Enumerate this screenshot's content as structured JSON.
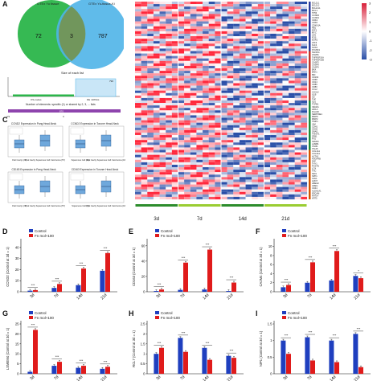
{
  "panel_letters": {
    "a": "A",
    "c": "C",
    "d": "D",
    "e": "E",
    "f": "F",
    "g": "G",
    "h": "H",
    "i": "I"
  },
  "venn": {
    "set1_label": "GTEx Yu tissue",
    "set2_label": "GTEx Yu-tissue-Ki",
    "left_only": "72",
    "overlap": "3",
    "right_only": "787",
    "set1_color": "#2bb54a",
    "set2_color": "#4fb4e8"
  },
  "size_chart": {
    "title": "Size of each list",
    "bar_value_label": "790",
    "x_labels": [
      "OS-nodes",
      "DE mRNAs"
    ],
    "footer": "Number of elements: specific (1) or shared by 2, 3, ... lists",
    "bottom_value": "870",
    "bottom_ticks": [
      "2/3",
      "3"
    ]
  },
  "boxplots": [
    {
      "title": "CCND2 Expression in Pang Head-Neck",
      "xlabels": [
        "Oral Cavity (20)",
        "Oral Cavity Squamous Cell Carcinoma (57)"
      ]
    },
    {
      "title": "CCND2 Expression in Toruner Head-Neck",
      "xlabels": [
        "Squamous Cell (11)",
        "Oral Cavity Squamous Cell Carcinoma (16)"
      ]
    },
    {
      "title": "CD163 Expression in Pang Head-Neck",
      "xlabels": [
        "Oral Cavity (22)",
        "Oral Cavity Squamous Cell Carcinoma (57)"
      ]
    },
    {
      "title": "CD163 Expression in Toruner Head-Neck",
      "xlabels": [
        "Squamous Cell (4)",
        "Oral Cavity Squamous Cell Carcinoma (16)"
      ]
    }
  ],
  "heatmap": {
    "columns_per_group": 7,
    "timepoints": [
      "3d",
      "7d",
      "14d",
      "21d"
    ],
    "group_colors": [
      "#2c8c2c",
      "#9acd32",
      "#2c8c2c",
      "#9acd32"
    ],
    "scale_ticks": [
      "3",
      "2",
      "1",
      "0",
      "-1",
      "-2",
      "-3"
    ],
    "scale_colors": {
      "high": "#d8203a",
      "mid": "#ffffff",
      "low": "#2a4fa8"
    },
    "row_group_colors": [
      "#2c3e9c",
      "#c0392b",
      "#1f8a3a",
      "#d35400"
    ],
    "gene_labels": [
      "BCL2L1",
      "BCL2L2",
      "BCL2L11",
      "MCL1",
      "TP53",
      "CCND2",
      "CCND1",
      "CDK4",
      "CDK6",
      "CDKN1A",
      "RB1",
      "E2F1",
      "MYC",
      "JUN",
      "FOS",
      "EGR1",
      "ATF3",
      "KLF4",
      "SOX2",
      "POU5F1",
      "NANOG",
      "LIN28A",
      "TNFRSF10A",
      "TNFRSF10B",
      "CASP3",
      "CASP8",
      "CASP9",
      "BAX",
      "BAK1",
      "BID",
      "CD163",
      "CD68",
      "CD14",
      "CD86",
      "CD80",
      "CCL2",
      "CXCL8",
      "IL1B",
      "IL6",
      "TNF",
      "IL10",
      "TGFB1",
      "VEGFA",
      "HIF1A",
      "PLAUR",
      "SERPINE1",
      "MMP9",
      "MMP2",
      "TIMP1",
      "VIM",
      "CDH1",
      "CDH2",
      "SNAI1",
      "TWIST1",
      "ZEB1",
      "FN1",
      "SPARC",
      "LAMB1",
      "ITGB1",
      "ITGA5",
      "COL1A1",
      "COL3A1",
      "ACTA2",
      "PDGFRB",
      "FAP",
      "THY1",
      "POSTN",
      "LOX",
      "TNC",
      "NID1",
      "SPP1",
      "CAV1",
      "LMO7",
      "HBEGF",
      "AREG",
      "CD44",
      "ALDH1A1",
      "EPCAM",
      "KRT14",
      "KRT5"
    ]
  },
  "bar_charts": [
    {
      "letter_key": "d",
      "ylabel": "CCND2 (Control at 3d = 1)",
      "legend": [
        "Control",
        "Fn mol+100"
      ],
      "categories": [
        "3d",
        "7d",
        "14d",
        "21d"
      ],
      "series": [
        {
          "name": "Control",
          "values": [
            1.0,
            3.5,
            6.0,
            19.0
          ]
        },
        {
          "name": "Fn mol+100",
          "values": [
            1.5,
            7.0,
            21.0,
            35.0
          ]
        }
      ],
      "ylim": [
        0,
        45
      ],
      "yticks": [
        0,
        10,
        20,
        30,
        40
      ],
      "sig": [
        "***",
        "***",
        "***",
        "***"
      ]
    },
    {
      "letter_key": "e",
      "ylabel": "CD163 (Control at 3d = 1)",
      "legend": [
        "Control",
        "Fn mol+100"
      ],
      "categories": [
        "3d",
        "7d",
        "14d",
        "21d"
      ],
      "series": [
        {
          "name": "Control",
          "values": [
            1.0,
            2.5,
            3.0,
            1.0
          ]
        },
        {
          "name": "Fn mol+100",
          "values": [
            3.0,
            38.0,
            55.0,
            12.0
          ]
        }
      ],
      "ylim": [
        0,
        65
      ],
      "yticks": [
        0,
        20,
        40,
        60
      ],
      "sig": [
        "***",
        "***",
        "***",
        "***"
      ]
    },
    {
      "letter_key": "f",
      "ylabel": "CA2M4 (Control at 3d = 1)",
      "legend": [
        "Control",
        "Fn mol+100"
      ],
      "categories": [
        "3d",
        "7d",
        "14d",
        "21d"
      ],
      "series": [
        {
          "name": "Control",
          "values": [
            1.0,
            2.0,
            2.5,
            3.5
          ]
        },
        {
          "name": "Fn mol+100",
          "values": [
            1.5,
            6.5,
            9.0,
            3.0
          ]
        }
      ],
      "ylim": [
        0,
        11
      ],
      "yticks": [
        0,
        2,
        4,
        6,
        8,
        10
      ],
      "sig": [
        "***",
        "***",
        "***",
        "*"
      ]
    },
    {
      "letter_key": "g",
      "ylabel": "LSMEM4 (Control at 3d = 1)",
      "legend": [
        "Control",
        "Fn mol+100"
      ],
      "categories": [
        "3d",
        "7d",
        "14d",
        "21d"
      ],
      "series": [
        {
          "name": "Control",
          "values": [
            1.0,
            4.0,
            3.0,
            2.5
          ]
        },
        {
          "name": "Fn mol+100",
          "values": [
            22.0,
            6.0,
            4.0,
            3.5
          ]
        }
      ],
      "ylim": [
        0,
        25
      ],
      "yticks": [
        0,
        5,
        10,
        15,
        20,
        25
      ],
      "sig": [
        "***",
        "***",
        "***",
        "***"
      ]
    },
    {
      "letter_key": "h",
      "ylabel": "RCL7 (Control at 3d = 1)",
      "legend": [
        "Control",
        "Fn mol+100"
      ],
      "categories": [
        "3d",
        "7d",
        "14d",
        "21d"
      ],
      "series": [
        {
          "name": "Control",
          "values": [
            1.0,
            1.8,
            1.3,
            0.9
          ]
        },
        {
          "name": "Fn mol+100",
          "values": [
            1.3,
            1.1,
            0.7,
            0.8
          ]
        }
      ],
      "ylim": [
        0,
        2.5
      ],
      "yticks": [
        0,
        0.5,
        1.0,
        1.5,
        2.0,
        2.5
      ],
      "sig": [
        "***",
        "***",
        "***",
        "***"
      ]
    },
    {
      "letter_key": "i",
      "ylabel": "NIP1 (Control at 3d = 1)",
      "legend": [
        "Control",
        "Fn mol+100"
      ],
      "categories": [
        "3d",
        "7d",
        "14d",
        "21d"
      ],
      "series": [
        {
          "name": "Control",
          "values": [
            1.0,
            1.1,
            1.0,
            1.2
          ]
        },
        {
          "name": "Fn mol+100",
          "values": [
            0.6,
            0.4,
            0.35,
            0.2
          ]
        }
      ],
      "ylim": [
        0,
        1.5
      ],
      "yticks": [
        0,
        0.5,
        1.0,
        1.5
      ],
      "sig": [
        "***",
        "***",
        "***",
        "***"
      ]
    }
  ],
  "chart_colors": {
    "control": "#1f3fbf",
    "treated": "#e01b1b"
  }
}
